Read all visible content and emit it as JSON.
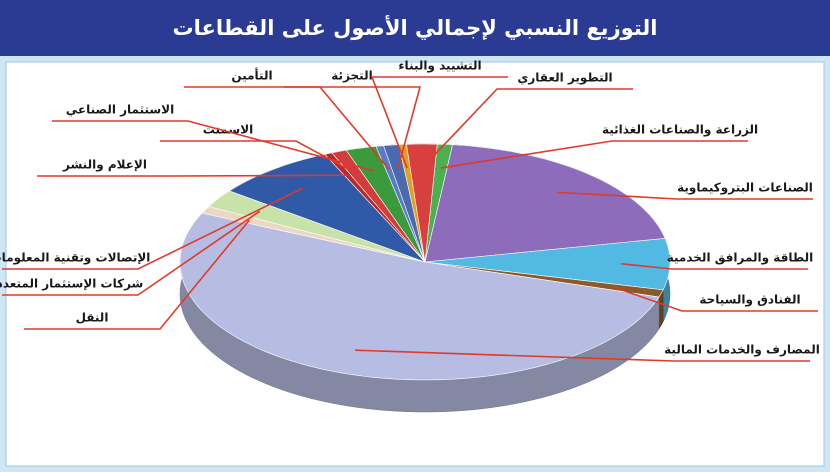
{
  "chart_data": {
    "type": "pie3d",
    "title": "التوزيع النسبي لإجمالي الأصول على القطاعات",
    "categories": [
      "الزراعة والصناعات الغذائية",
      "الصناعات البتروكيماوية",
      "الطاقة والمرافق الخدمية",
      "الفنادق والسياحة",
      "المصارف والخدمات المالية",
      "النقل",
      "شركات الإستثمار المتعدد",
      "الإتصالات وتقنية المعلومات",
      "الإعلام والنشر",
      "الاسمنت",
      "الاستثمار الصناعي",
      "التأمين",
      "التجزئة",
      "التشييد والبناء",
      "التطوير العقاري"
    ],
    "values": [
      1,
      20,
      7,
      1,
      52,
      1,
      2.5,
      8,
      0.5,
      1,
      2,
      0.5,
      1,
      0.5,
      2
    ],
    "colors": [
      "#4caf50",
      "#8d6cbc",
      "#52b9e2",
      "#8b5a2b",
      "#b7bde2",
      "#ead9c0",
      "#c9e2aa",
      "#3059a8",
      "#b52a2a",
      "#d23c3c",
      "#3b9a3b",
      "#5a7ac8",
      "#4a6ab0",
      "#e0a020",
      "#d84040"
    ]
  }
}
